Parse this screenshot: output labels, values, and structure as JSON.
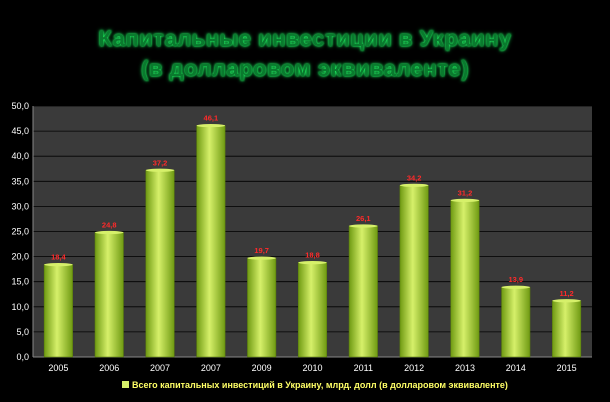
{
  "title_lines": [
    "Капитальные инвестиции в Украину",
    "(в долларовом эквиваленте)"
  ],
  "colors": {
    "background": "#000000",
    "plot_area": "#3a3a3a",
    "bar_light": "#d6f06a",
    "bar_dark": "#6f9a12",
    "data_label": "#ff2a2a",
    "legend_text": "#ffff66",
    "title": "#0a7a2e"
  },
  "chart_data": {
    "type": "bar",
    "title": "Капитальные инвестиции в Украину (в долларовом эквиваленте)",
    "categories": [
      "2005",
      "2006",
      "2007",
      "2007",
      "2009",
      "2010",
      "2011",
      "2012",
      "2013",
      "2014",
      "2015"
    ],
    "series": [
      {
        "name": "Всего капитальных инвестиций в Украину, млрд. долл (в долларовом эквиваленте)",
        "values": [
          18.4,
          24.8,
          37.2,
          46.1,
          19.7,
          18.8,
          26.1,
          34.2,
          31.2,
          13.9,
          11.2
        ],
        "labels": [
          "18,4",
          "24,8",
          "37,2",
          "46,1",
          "19,7",
          "18,8",
          "26,1",
          "34,2",
          "31,2",
          "13,9",
          "11,2"
        ]
      }
    ],
    "y_ticks": [
      "0,0",
      "5,0",
      "10,0",
      "15,0",
      "20,0",
      "25,0",
      "30,0",
      "35,0",
      "40,0",
      "45,0",
      "50,0"
    ],
    "ylim": [
      0,
      50
    ],
    "y_step": 5,
    "grid": true,
    "legend_position": "bottom",
    "xlabel": "",
    "ylabel": ""
  }
}
